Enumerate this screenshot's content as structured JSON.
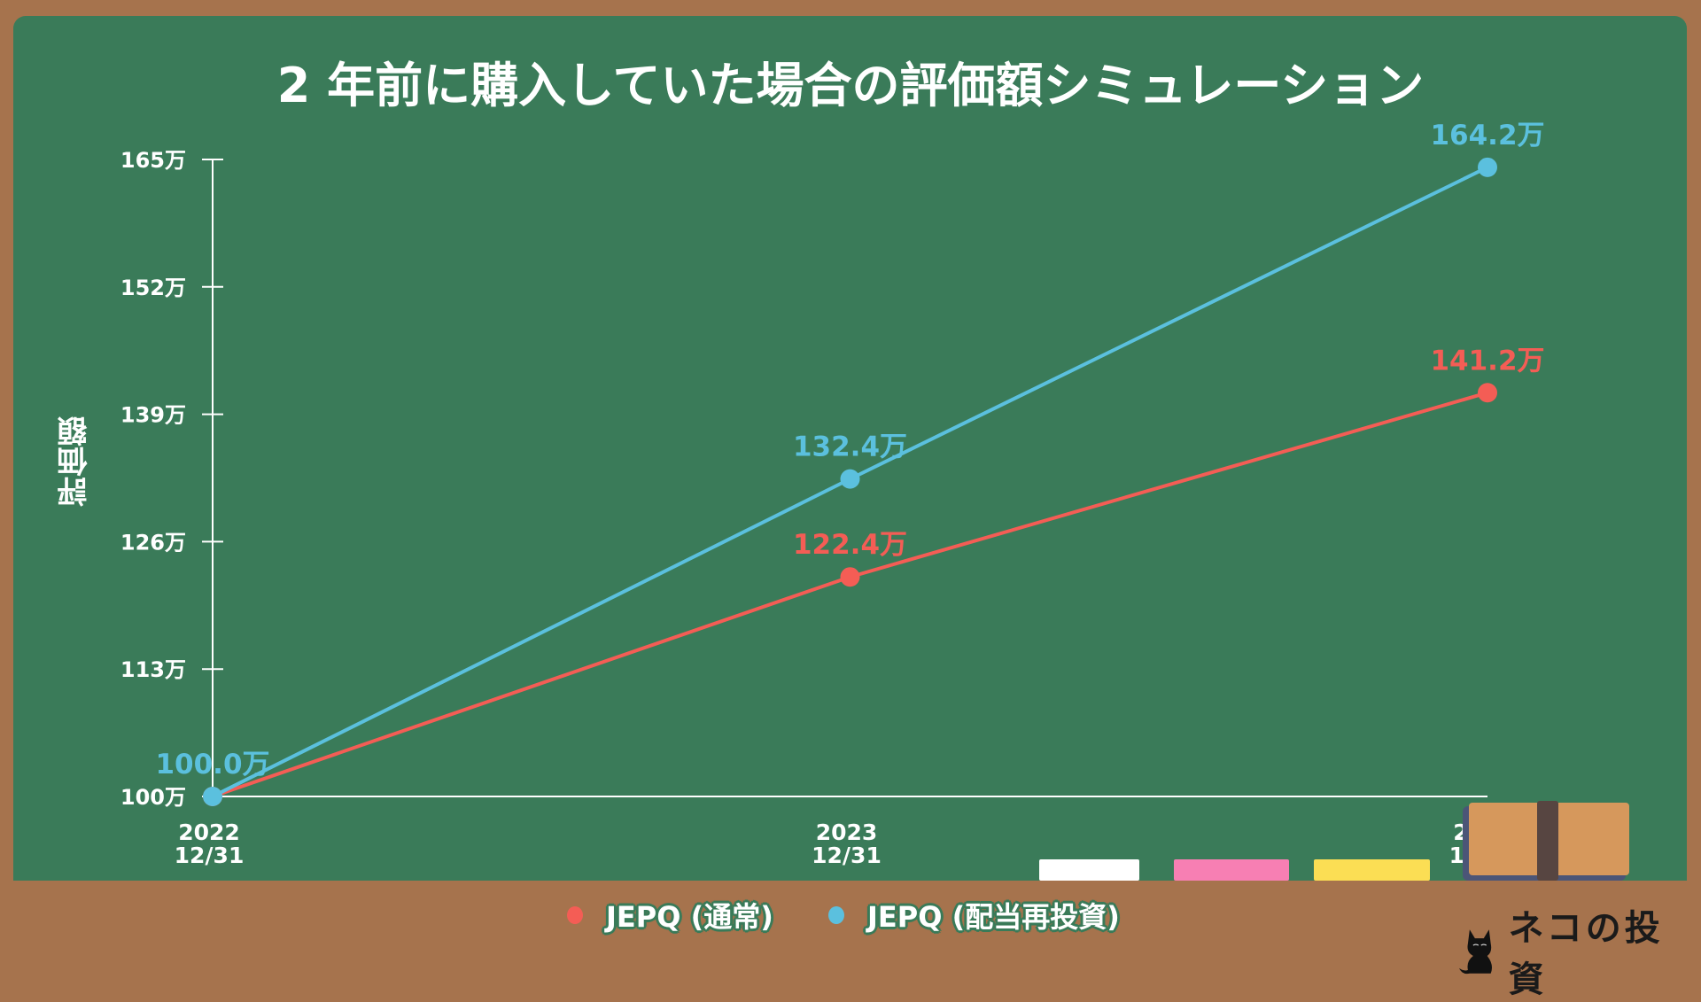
{
  "colors": {
    "board": "#3a7b59",
    "frame": "#a6734d",
    "normal": "#f45d55",
    "reinvest": "#5bc0de",
    "axis": "#ffffff"
  },
  "chart_data": {
    "type": "line",
    "title": "2 年前に購入していた場合の評価額シミュレーション",
    "ylabel": "評価額",
    "xlabel": "",
    "categories": [
      [
        "2022",
        "12/31"
      ],
      [
        "2023",
        "12/31"
      ],
      [
        "2024",
        "12/06"
      ]
    ],
    "ylim": [
      100,
      165
    ],
    "yticks": [
      100,
      113,
      126,
      139,
      152,
      165
    ],
    "ytick_labels": [
      "100万",
      "113万",
      "126万",
      "139万",
      "152万",
      "165万"
    ],
    "legend_position": "bottom",
    "series": [
      {
        "name": "JEPQ (通常)",
        "color": "#f45d55",
        "values": [
          100.0,
          122.4,
          141.2
        ],
        "labels": [
          "",
          "122.4万",
          "141.2万"
        ]
      },
      {
        "name": "JEPQ (配当再投資)",
        "color": "#5bc0de",
        "values": [
          100.0,
          132.4,
          164.2
        ],
        "labels": [
          "100.0万",
          "132.4万",
          "164.2万"
        ]
      }
    ]
  },
  "logo": {
    "text": "ネコの投資",
    "icon": "black-cat-icon"
  },
  "decor": {
    "chalks": [
      "#ffffff",
      "#f77fb3",
      "#fbde54"
    ],
    "eraser": "blackboard-eraser-icon"
  }
}
